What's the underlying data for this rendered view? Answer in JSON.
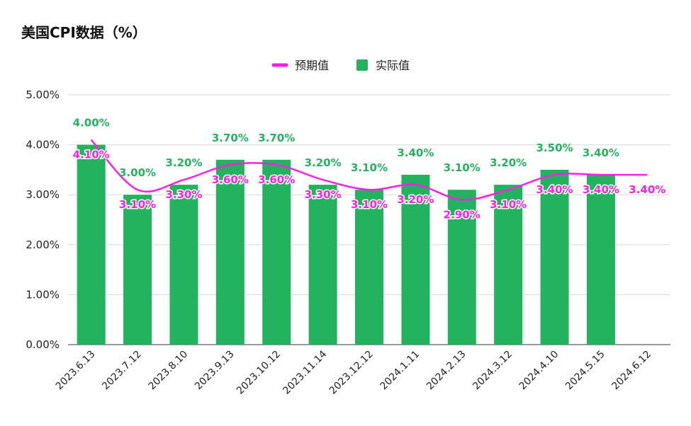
{
  "title": "美国CPI数据（%）",
  "colors": {
    "actual": "#23b35f",
    "expected": "#ff1ee8",
    "grid": "#d9d9d9",
    "axis": "#333333"
  },
  "chart_data": {
    "type": "bar",
    "title": "美国CPI数据（%）",
    "legend_position": "top-center",
    "grid": true,
    "ylim": [
      0,
      5
    ],
    "y_ticks": [
      "0.00%",
      "1.00%",
      "2.00%",
      "3.00%",
      "4.00%",
      "5.00%"
    ],
    "categories": [
      "2023.6.13",
      "2023.7.12",
      "2023.8.10",
      "2023.9.13",
      "2023.10.12",
      "2023.11.14",
      "2023.12.12",
      "2024.1.11",
      "2024.2.13",
      "2024.3.12",
      "2024.4.10",
      "2024.5.15",
      "2024.6.12"
    ],
    "series": [
      {
        "name": "预期值",
        "kind": "line",
        "smooth": true,
        "values": [
          4.1,
          3.1,
          3.3,
          3.6,
          3.6,
          3.3,
          3.1,
          3.2,
          2.9,
          3.1,
          3.4,
          3.4,
          3.4
        ],
        "labels": [
          "4.10%",
          "3.10%",
          "3.30%",
          "3.60%",
          "3.60%",
          "3.30%",
          "3.10%",
          "3.20%",
          "2.90%",
          "3.10%",
          "3.40%",
          "3.40%",
          "3.40%"
        ]
      },
      {
        "name": "实际值",
        "kind": "bar",
        "values": [
          4.0,
          3.0,
          3.2,
          3.7,
          3.7,
          3.2,
          3.1,
          3.4,
          3.1,
          3.2,
          3.5,
          3.4,
          null
        ],
        "labels": [
          "4.00%",
          "3.00%",
          "3.20%",
          "3.70%",
          "3.70%",
          "3.20%",
          "3.10%",
          "3.40%",
          "3.10%",
          "3.20%",
          "3.50%",
          "3.40%",
          null
        ]
      }
    ]
  }
}
